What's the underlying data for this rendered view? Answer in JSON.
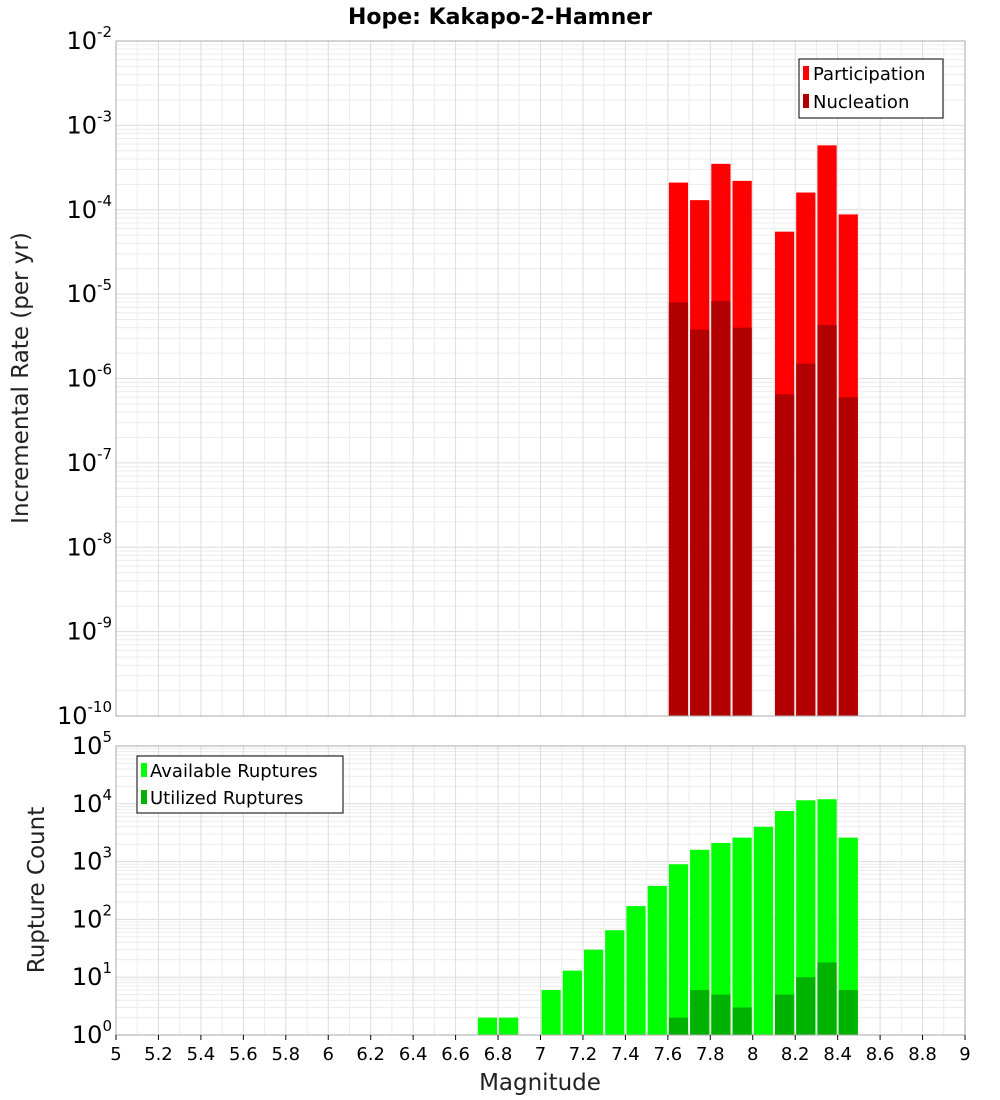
{
  "title": "Hope: Kakapo-2-Hamner",
  "chart_data": [
    {
      "type": "bar",
      "ylabel": "Incremental Rate (per yr)",
      "yscale": "log",
      "ylim_exp": [
        -10,
        -2
      ],
      "ytick_exps": [
        "-10",
        "-9",
        "-8",
        "-7",
        "-6",
        "-5",
        "-4",
        "-3",
        "-2"
      ],
      "ytick_base": "10",
      "grid": true,
      "legend": {
        "placement": "top-right",
        "entries": [
          {
            "label": "Participation",
            "color": "#ff0000"
          },
          {
            "label": "Nucleation",
            "color": "#b20000"
          }
        ]
      },
      "series": [
        {
          "name": "Participation",
          "color": "#ff0000",
          "x": [
            7.65,
            7.75,
            7.85,
            7.95,
            8.15,
            8.25,
            8.35,
            8.45
          ],
          "values": [
            0.00021,
            0.00013,
            0.00035,
            0.00022,
            5.5e-05,
            0.00016,
            0.00058,
            8.8e-05
          ]
        },
        {
          "name": "Nucleation",
          "color": "#b20000",
          "x": [
            7.65,
            7.75,
            7.85,
            7.95,
            8.15,
            8.25,
            8.35,
            8.45
          ],
          "values": [
            8e-06,
            3.8e-06,
            8.3e-06,
            4e-06,
            6.5e-07,
            1.5e-06,
            4.3e-06,
            6e-07
          ]
        }
      ]
    },
    {
      "type": "bar",
      "xlabel": "Magnitude",
      "ylabel": "Rupture Count",
      "yscale": "log",
      "ylim_exp": [
        0,
        5
      ],
      "ytick_exps": [
        "0",
        "1",
        "2",
        "3",
        "4",
        "5"
      ],
      "ytick_base": "10",
      "xlim": [
        5,
        9
      ],
      "xticks": [
        "5",
        "5.2",
        "5.4",
        "5.6",
        "5.8",
        "6",
        "6.2",
        "6.4",
        "6.6",
        "6.8",
        "7",
        "7.2",
        "7.4",
        "7.6",
        "7.8",
        "8",
        "8.2",
        "8.4",
        "8.6",
        "8.8",
        "9"
      ],
      "grid": true,
      "legend": {
        "placement": "top-left",
        "entries": [
          {
            "label": "Available Ruptures",
            "color": "#00ff00"
          },
          {
            "label": "Utilized Ruptures",
            "color": "#00b200"
          }
        ]
      },
      "series": [
        {
          "name": "Available Ruptures",
          "color": "#00ff00",
          "x": [
            6.25,
            6.75,
            6.85,
            6.95,
            7.05,
            7.15,
            7.25,
            7.35,
            7.45,
            7.55,
            7.65,
            7.75,
            7.85,
            7.95,
            8.05,
            8.15,
            8.25,
            8.35,
            8.45
          ],
          "values": [
            1,
            2,
            2,
            1,
            6,
            13,
            30,
            65,
            170,
            380,
            900,
            1600,
            2100,
            2600,
            4000,
            7500,
            11500,
            12000,
            2600
          ]
        },
        {
          "name": "Utilized Ruptures",
          "color": "#00b200",
          "x": [
            7.65,
            7.75,
            7.85,
            7.95,
            8.15,
            8.25,
            8.35,
            8.45
          ],
          "values": [
            2,
            6,
            5,
            3,
            5,
            10,
            18,
            6
          ]
        }
      ]
    }
  ]
}
